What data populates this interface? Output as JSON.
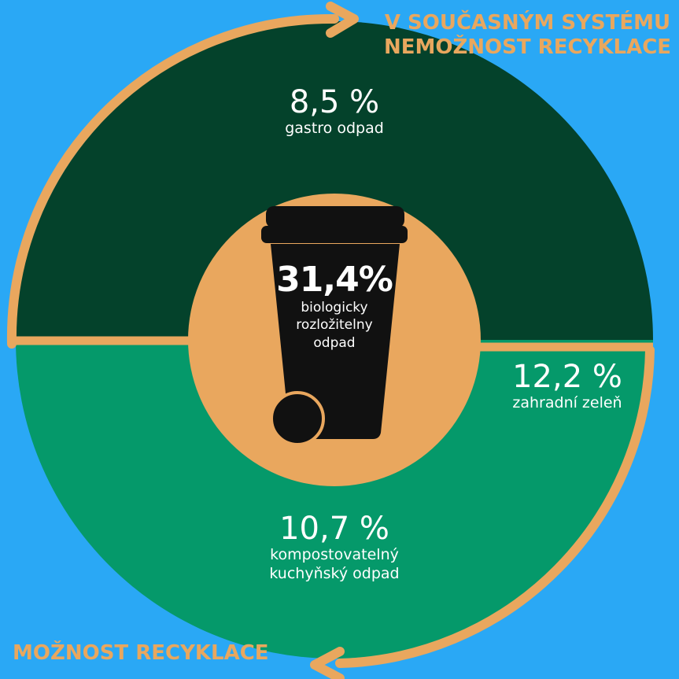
{
  "top_banner": {
    "line1": "V SOUČASNÝM SYSTÉMU",
    "line2": "NEMOŽNOST RECYKLACE"
  },
  "bottom_banner": {
    "text": "MOŽNOST RECYKLACE"
  },
  "center": {
    "value": "31,4%",
    "desc_line1": "biologicky",
    "desc_line2": "rozložitelny",
    "desc_line3": "odpad"
  },
  "segments": [
    {
      "value": "8,5 %",
      "label": "gastro odpad",
      "color": "#04422b"
    },
    {
      "value": "12,2 %",
      "label": "zahradní zeleň",
      "color": "#05996a"
    },
    {
      "value": "10,7 %",
      "label_line1": "kompostovatelný",
      "label_line2": "kuchyňský odpad",
      "color": "#05996a"
    }
  ],
  "colors": {
    "background": "#2aa8f5",
    "dark_green": "#04422b",
    "green": "#05996a",
    "accent": "#e9a75e",
    "bin": "#111111"
  },
  "icons": [
    "waste-bin-icon",
    "arrow-right-icon",
    "arrow-left-icon"
  ]
}
